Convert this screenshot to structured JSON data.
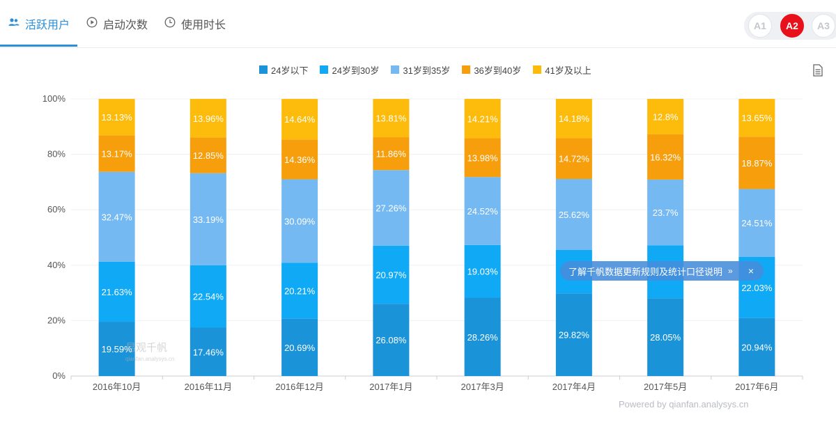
{
  "tabs": [
    {
      "label": "活跃用户",
      "icon": "users-icon",
      "active": true
    },
    {
      "label": "启动次数",
      "icon": "play-circle-icon",
      "active": false
    },
    {
      "label": "使用时长",
      "icon": "clock-icon",
      "active": false
    }
  ],
  "versions": [
    {
      "label": "A1",
      "active": false
    },
    {
      "label": "A2",
      "active": true
    },
    {
      "label": "A3",
      "active": false
    }
  ],
  "tooltip": {
    "text": "了解千帆数据更新规则及统计口径说明",
    "arrow": "»",
    "close": "×"
  },
  "powered_by": "Powered by qianfan.analysys.cn",
  "watermark": {
    "title": "易观千帆",
    "subtitle": "qianfan.analysys.cn"
  },
  "colors": {
    "accent": "#2b8fd8",
    "version_active": "#e8101a"
  },
  "chart_data": {
    "type": "bar",
    "stacked": true,
    "percent": true,
    "categories": [
      "2016年10月",
      "2016年11月",
      "2016年12月",
      "2017年1月",
      "2017年3月",
      "2017年4月",
      "2017年5月",
      "2017年6月"
    ],
    "series": [
      {
        "name": "24岁以下",
        "color": "#1a93d9",
        "values": [
          19.59,
          17.46,
          20.69,
          26.08,
          28.26,
          29.82,
          28.05,
          20.94
        ],
        "labels": [
          "19.59%",
          "17.46%",
          "20.69%",
          "26.08%",
          "28.26%",
          "29.82%",
          "28.05%",
          "20.94%"
        ]
      },
      {
        "name": "24岁到30岁",
        "color": "#10a9f5",
        "values": [
          21.63,
          22.54,
          20.21,
          20.97,
          19.03,
          15.66,
          19.13,
          22.03
        ],
        "labels": [
          "21.63%",
          "22.54%",
          "20.21%",
          "20.97%",
          "19.03%",
          "",
          "",
          "22.03%"
        ]
      },
      {
        "name": "31岁到35岁",
        "color": "#75b9f2",
        "values": [
          32.47,
          33.19,
          30.09,
          27.26,
          24.52,
          25.62,
          23.7,
          24.51
        ],
        "labels": [
          "32.47%",
          "33.19%",
          "30.09%",
          "27.26%",
          "24.52%",
          "25.62%",
          "23.7%",
          "24.51%"
        ]
      },
      {
        "name": "36岁到40岁",
        "color": "#f79e0c",
        "values": [
          13.17,
          12.85,
          14.36,
          11.86,
          13.98,
          14.72,
          16.32,
          18.87
        ],
        "labels": [
          "13.17%",
          "12.85%",
          "14.36%",
          "11.86%",
          "13.98%",
          "14.72%",
          "16.32%",
          "18.87%"
        ]
      },
      {
        "name": "41岁及以上",
        "color": "#fdbb0c",
        "values": [
          13.13,
          13.96,
          14.64,
          13.81,
          14.21,
          14.18,
          12.8,
          13.65
        ],
        "labels": [
          "13.13%",
          "13.96%",
          "14.64%",
          "13.81%",
          "14.21%",
          "14.18%",
          "12.8%",
          "13.65%"
        ]
      }
    ],
    "yticks": [
      "0%",
      "20%",
      "40%",
      "60%",
      "80%",
      "100%"
    ],
    "ylim": [
      0,
      100
    ],
    "grid": true,
    "legend_position": "top-center"
  }
}
